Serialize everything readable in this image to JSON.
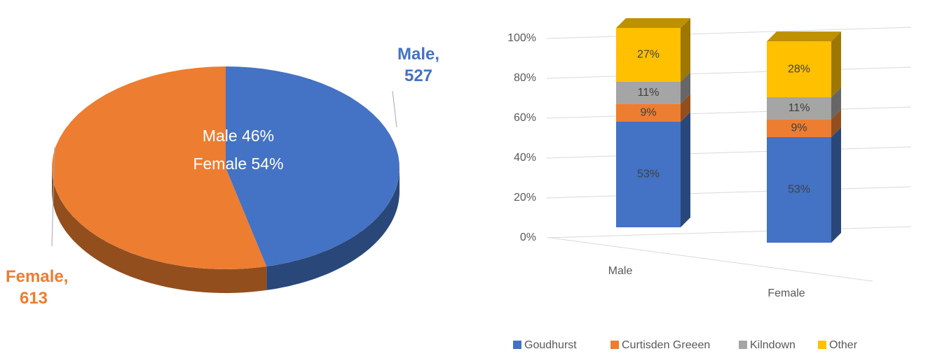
{
  "chart_data": [
    {
      "type": "pie",
      "categories": [
        "Male",
        "Female"
      ],
      "values": [
        527,
        613
      ],
      "value_labels": [
        "Male, 527",
        "Female, 613"
      ],
      "colors": [
        "#4472c4",
        "#ed7d31"
      ],
      "annotations": [
        "Male 46%",
        "Female 54%"
      ]
    },
    {
      "type": "bar",
      "stacked": true,
      "categories": [
        "Male",
        "Female"
      ],
      "series": [
        {
          "name": "Goudhurst",
          "color": "#4472c4",
          "values": [
            53,
            53
          ],
          "value_labels": [
            "53%",
            "53%"
          ]
        },
        {
          "name": "Curtisden Greeen",
          "color": "#ed7d31",
          "values": [
            9,
            9
          ],
          "value_labels": [
            "9%",
            "9%"
          ]
        },
        {
          "name": "Kilndown",
          "color": "#a5a5a5",
          "values": [
            11,
            11
          ],
          "value_labels": [
            "11%",
            "11%"
          ]
        },
        {
          "name": "Other",
          "color": "#ffc000",
          "values": [
            27,
            28
          ],
          "value_labels": [
            "27%",
            "28%"
          ]
        }
      ],
      "ylim": [
        0,
        100
      ],
      "yticks": [
        {
          "value": 0,
          "label": "0%"
        },
        {
          "value": 20,
          "label": "20%"
        },
        {
          "value": 40,
          "label": "40%"
        },
        {
          "value": 60,
          "label": "60%"
        },
        {
          "value": 80,
          "label": "80%"
        },
        {
          "value": 100,
          "label": "100%"
        }
      ],
      "grid": true,
      "legend": "bottom"
    }
  ]
}
